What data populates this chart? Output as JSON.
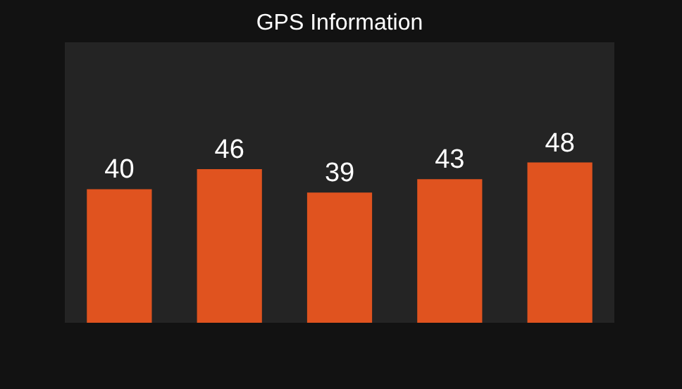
{
  "chart_data": {
    "type": "bar",
    "title": "GPS Information",
    "categories": [
      null,
      null,
      null,
      null,
      null
    ],
    "values": [
      40,
      46,
      39,
      43,
      48
    ],
    "color": "#e0531f",
    "data_labels": true
  }
}
